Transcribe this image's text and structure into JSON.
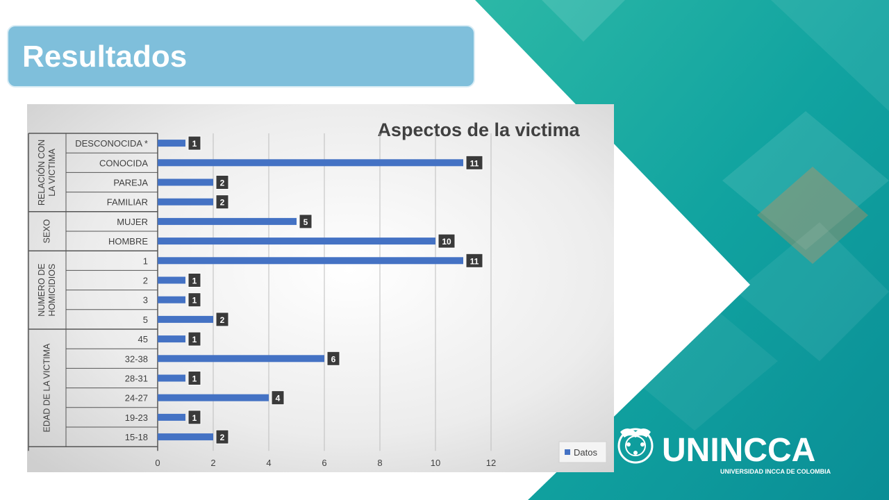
{
  "slide": {
    "title": "Resultados",
    "logo_name": "UNINCCA",
    "logo_subtitle": "UNIVERSIDAD INCCA DE COLOMBIA"
  },
  "colors": {
    "title_bar": "#7fbfdb",
    "bar": "#4472c4",
    "label_box": "#3a3a3a",
    "teal_dark": "#0a8e96",
    "teal_light": "#2cb8a6"
  },
  "chart_data": {
    "type": "bar",
    "orientation": "horizontal",
    "title": "Aspectos de la victima",
    "groups": [
      {
        "name": "RELACIÓN CON LA VICTIMA",
        "name_lines": [
          "RELACIÓN CON",
          "LA VICTIMA"
        ],
        "categories": [
          "DESCONOCIDA *",
          "CONOCIDA",
          "PAREJA",
          "FAMILIAR"
        ],
        "values": [
          1,
          11,
          2,
          2
        ]
      },
      {
        "name": "SEXO",
        "name_lines": [
          "SEXO"
        ],
        "categories": [
          "MUJER",
          "HOMBRE"
        ],
        "values": [
          5,
          10
        ]
      },
      {
        "name": "NUMERO DE HOMICIDIOS",
        "name_lines": [
          "NUMERO DE",
          "HOMICIDIOS"
        ],
        "categories": [
          "1",
          "2",
          "3",
          "5"
        ],
        "values": [
          11,
          1,
          1,
          2
        ]
      },
      {
        "name": "EDAD DE LA VICTIMA",
        "name_lines": [
          "EDAD DE LA VICTIMA"
        ],
        "categories": [
          "45",
          "32-38",
          "28-31",
          "24-27",
          "19-23",
          "15-18"
        ],
        "values": [
          1,
          6,
          1,
          4,
          1,
          2
        ]
      }
    ],
    "series": [
      {
        "name": "Datos"
      }
    ],
    "xlim": [
      0,
      12
    ],
    "xticks": [
      0,
      2,
      4,
      6,
      8,
      10,
      12
    ],
    "grid": true,
    "legend": "bottom-right",
    "data_labels": true
  }
}
